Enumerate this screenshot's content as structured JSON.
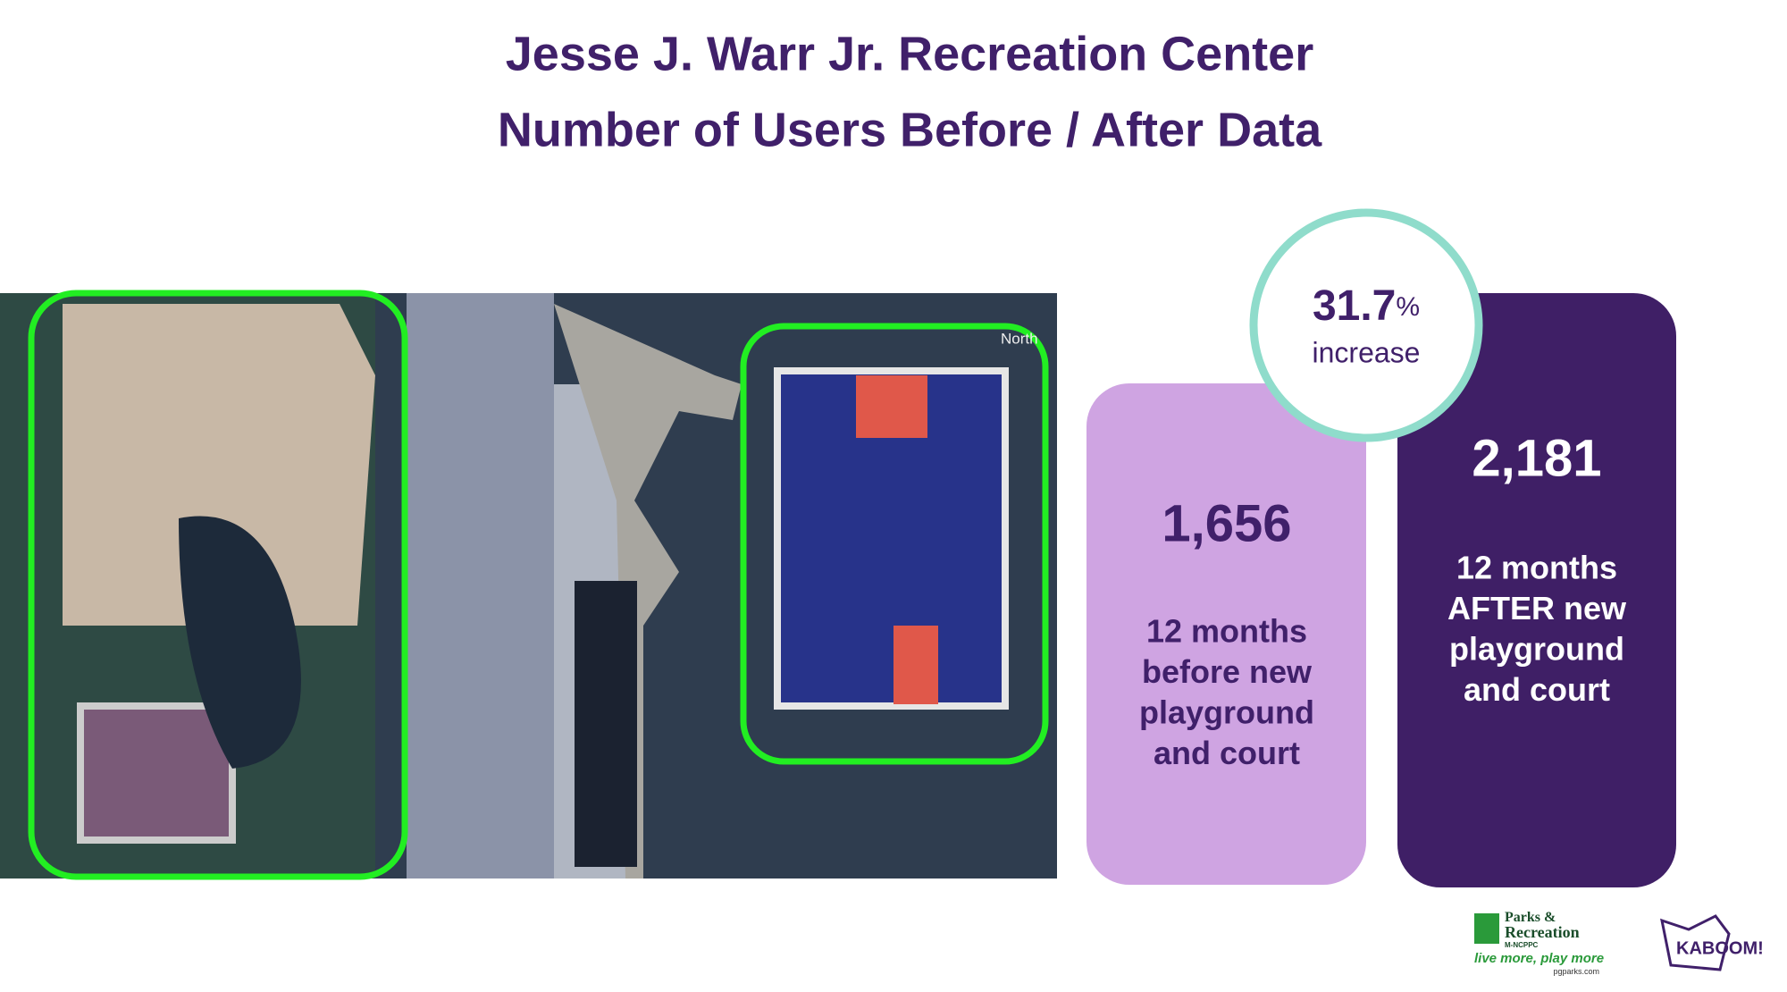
{
  "title": {
    "line1": "Jesse J. Warr Jr. Recreation Center",
    "line2": "Number of Users Before / After Data"
  },
  "photo": {
    "map_label": "North"
  },
  "change": {
    "number": "31.7",
    "unit": "%",
    "label": "increase"
  },
  "before": {
    "number": "1,656",
    "lines": [
      "12 months",
      "before new",
      "playground",
      "and court"
    ]
  },
  "after": {
    "number": "2,181",
    "lines": [
      "12 months",
      "AFTER new",
      "playground",
      "and court"
    ]
  },
  "logos": {
    "parks_name": [
      "Parks &",
      "Recreation"
    ],
    "parks_agency": "M-NCPPC",
    "parks_tagline": "live more, play more",
    "parks_url": "pgparks.com",
    "kaboom": "KABOOM!"
  }
}
